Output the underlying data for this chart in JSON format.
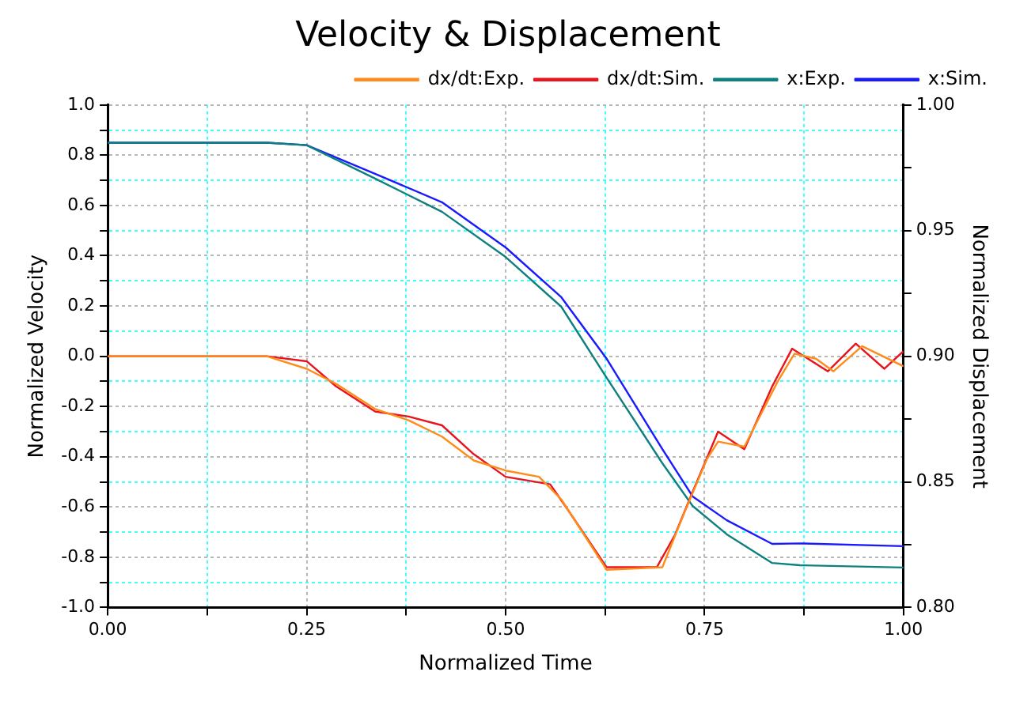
{
  "chart_data": {
    "type": "line",
    "title": "Velocity & Displacement",
    "xlabel": "Normalized Time",
    "ylabel": "Normalized Velocity",
    "y2label": "Normalized Displacement",
    "xlim": [
      0,
      1
    ],
    "ylim": [
      -1,
      1
    ],
    "y2lim": [
      0.8,
      1
    ],
    "xticks": [
      {
        "value": 0,
        "label": "0.00"
      },
      {
        "value": 0.125,
        "label": null
      },
      {
        "value": 0.25,
        "label": "0.25"
      },
      {
        "value": 0.375,
        "label": null
      },
      {
        "value": 0.5,
        "label": "0.50"
      },
      {
        "value": 0.625,
        "label": null
      },
      {
        "value": 0.75,
        "label": "0.75"
      },
      {
        "value": 0.875,
        "label": null
      },
      {
        "value": 1,
        "label": "1.00"
      }
    ],
    "yticks": [
      {
        "value": -1,
        "label": "-1.0"
      },
      {
        "value": -0.9,
        "label": null
      },
      {
        "value": -0.8,
        "label": "-0.8"
      },
      {
        "value": -0.7,
        "label": null
      },
      {
        "value": -0.6,
        "label": "-0.6"
      },
      {
        "value": -0.5,
        "label": null
      },
      {
        "value": -0.4,
        "label": "-0.4"
      },
      {
        "value": -0.3,
        "label": null
      },
      {
        "value": -0.2,
        "label": "-0.2"
      },
      {
        "value": -0.1,
        "label": null
      },
      {
        "value": 0,
        "label": "0.0"
      },
      {
        "value": 0.1,
        "label": null
      },
      {
        "value": 0.2,
        "label": "0.2"
      },
      {
        "value": 0.3,
        "label": null
      },
      {
        "value": 0.4,
        "label": "0.4"
      },
      {
        "value": 0.5,
        "label": null
      },
      {
        "value": 0.6,
        "label": "0.6"
      },
      {
        "value": 0.7,
        "label": null
      },
      {
        "value": 0.8,
        "label": "0.8"
      },
      {
        "value": 0.9,
        "label": null
      },
      {
        "value": 1,
        "label": "1.0"
      }
    ],
    "y2ticks": [
      {
        "value": 0.8,
        "label": "0.80"
      },
      {
        "value": 0.825,
        "label": null
      },
      {
        "value": 0.85,
        "label": "0.85"
      },
      {
        "value": 0.875,
        "label": null
      },
      {
        "value": 0.9,
        "label": "0.90"
      },
      {
        "value": 0.925,
        "label": null
      },
      {
        "value": 0.95,
        "label": "0.95"
      },
      {
        "value": 0.975,
        "label": null
      },
      {
        "value": 1,
        "label": "1.00"
      }
    ],
    "grid": true,
    "legend": "top right",
    "marker": "none",
    "line_style": "solid",
    "series": [
      {
        "name": "dx/dt:Exp.",
        "color": "#ff8c1a",
        "x": [
          0,
          0.2,
          0.25,
          0.287,
          0.336,
          0.378,
          0.42,
          0.46,
          0.5,
          0.542,
          0.57,
          0.627,
          0.697,
          0.725,
          0.753,
          0.767,
          0.8,
          0.842,
          0.863,
          0.89,
          0.912,
          0.948,
          1
        ],
        "values": [
          0,
          0,
          -0.05,
          -0.11,
          -0.21,
          -0.255,
          -0.32,
          -0.415,
          -0.455,
          -0.48,
          -0.57,
          -0.85,
          -0.84,
          -0.62,
          -0.41,
          -0.34,
          -0.36,
          -0.1,
          0.01,
          -0.01,
          -0.06,
          0.04,
          -0.04
        ]
      },
      {
        "name": "dx/dt:Sim.",
        "color": "#e8141e",
        "x": [
          0,
          0.2,
          0.25,
          0.287,
          0.336,
          0.378,
          0.42,
          0.46,
          0.5,
          0.556,
          0.578,
          0.627,
          0.69,
          0.713,
          0.735,
          0.767,
          0.8,
          0.835,
          0.86,
          0.905,
          0.94,
          0.976,
          1
        ],
        "values": [
          0,
          0,
          -0.02,
          -0.12,
          -0.22,
          -0.24,
          -0.275,
          -0.39,
          -0.48,
          -0.51,
          -0.61,
          -0.84,
          -0.84,
          -0.71,
          -0.54,
          -0.3,
          -0.37,
          -0.12,
          0.03,
          -0.06,
          0.05,
          -0.05,
          0.02
        ]
      },
      {
        "name": "x:Exp.",
        "color": "#0f8080",
        "axis": "y2",
        "x": [
          0,
          0.2,
          0.25,
          0.336,
          0.42,
          0.5,
          0.57,
          0.627,
          0.697,
          0.735,
          0.778,
          0.835,
          0.87,
          1
        ],
        "values": [
          0.985,
          0.985,
          0.984,
          0.9707,
          0.9575,
          0.9395,
          0.9197,
          0.8914,
          0.8574,
          0.8404,
          0.8291,
          0.8177,
          0.8168,
          0.8159
        ]
      },
      {
        "name": "x:Sim.",
        "color": "#1a1aff",
        "axis": "y2",
        "x": [
          0,
          0.2,
          0.25,
          0.336,
          0.42,
          0.5,
          0.57,
          0.627,
          0.697,
          0.735,
          0.778,
          0.835,
          0.87,
          1
        ],
        "values": [
          0.985,
          0.985,
          0.984,
          0.9726,
          0.9613,
          0.9433,
          0.9235,
          0.899,
          0.863,
          0.8442,
          0.8347,
          0.8253,
          0.8255,
          0.8244
        ]
      }
    ]
  }
}
